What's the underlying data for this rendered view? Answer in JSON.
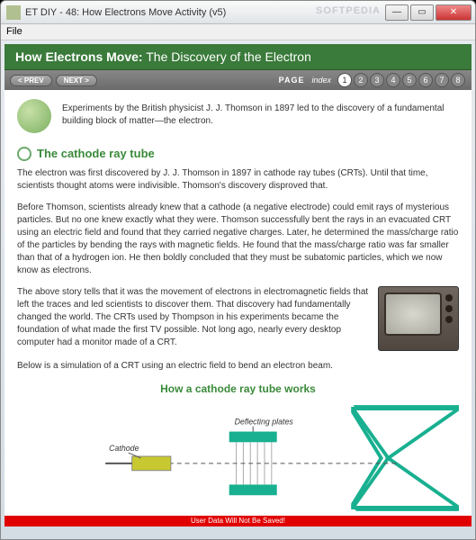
{
  "window": {
    "title": "ET DIY - 48: How Electrons Move Activity (v5)",
    "watermark": "SOFTPEDIA"
  },
  "menu": {
    "file": "File"
  },
  "header": {
    "bold": "How Electrons Move:",
    "rest": " The Discovery of the Electron"
  },
  "nav": {
    "prev": "< PREV",
    "next": "NEXT >",
    "page": "PAGE",
    "index": "index",
    "pages": [
      "1",
      "2",
      "3",
      "4",
      "5",
      "6",
      "7",
      "8"
    ],
    "active": 0
  },
  "intro": "Experiments by the British physicist J. J. Thomson in 1897 led to the discovery of a fundamental building block of matter—the electron.",
  "section_title": "The cathode ray tube",
  "p1": "The electron was first discovered by J. J. Thomson in 1897 in cathode ray tubes (CRTs). Until that time, scientists thought atoms were indivisible. Thomson's discovery disproved that.",
  "p2": "Before Thomson, scientists already knew that a cathode (a negative electrode) could emit rays of mysterious particles. But no one knew exactly what they were. Thomson successfully bent the rays in an evacuated CRT using an electric field and found that they carried negative charges. Later, he determined the mass/charge ratio of the particles by bending the rays with magnetic fields. He found that the mass/charge ratio was far smaller than that of a hydrogen ion. He then boldly concluded that they must be subatomic particles, which we now know as electrons.",
  "p3": "The above story tells that it was the movement of electrons in electromagnetic fields that left the traces and led scientists to discover them. That discovery had fundamentally changed the world. The CRTs used by Thompson in his experiments became the foundation of what made the first TV possible. Not long ago, nearly every desktop computer had a monitor made of a CRT.",
  "p4": "Below is a simulation of a CRT using an electric field to bend an electron beam.",
  "diagram": {
    "title": "How a cathode ray tube works",
    "deflecting": "Deflecting plates",
    "cathode": "Cathode",
    "colors": {
      "green": "#18b090",
      "yellow": "#c8c830",
      "teal": "#18b090",
      "line": "#555"
    }
  },
  "status": "User Data Will Not Be Saved!"
}
